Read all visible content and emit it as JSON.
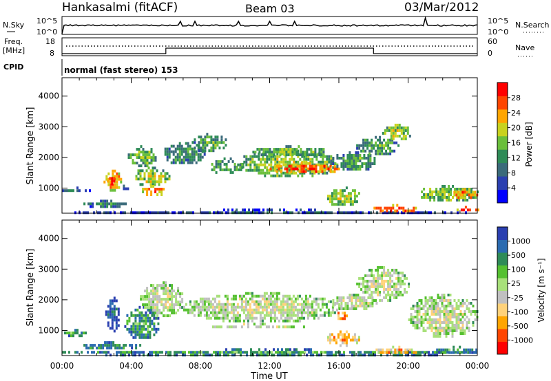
{
  "header": {
    "station": "Hankasalmi (fitACF)",
    "beam": "Beam 03",
    "date": "03/Mar/2012"
  },
  "status_panels": {
    "nsky_label": "N.Sky",
    "nsky_ticks": [
      "10^5",
      "10^0"
    ],
    "nsearch_label": "N.Search",
    "freq_label_line1": "Freq.",
    "freq_label_line2": "[MHz]",
    "freq_ticks": [
      "18",
      "8"
    ],
    "nave_label": "Nave",
    "nave_ticks": [
      "60",
      "0"
    ],
    "cpid_label": "CPID",
    "cpid_text": "normal (fast stereo) 153"
  },
  "chart_data": [
    {
      "type": "heatmap",
      "name": "power",
      "xlabel": "Time UT",
      "ylabel": "Slant Range [km]",
      "x_ticks": [
        "00:00",
        "04:00",
        "08:00",
        "12:00",
        "16:00",
        "20:00",
        "00:00"
      ],
      "xlim": [
        0,
        24
      ],
      "ylim": [
        180,
        4600
      ],
      "y_ticks": [
        1000,
        2000,
        3000,
        4000
      ],
      "colorbar_label": "Power [dB]",
      "colorbar_ticks": [
        4,
        8,
        12,
        16,
        20,
        24,
        28
      ],
      "colors": [
        "#0000ff",
        "#2a3fb0",
        "#3a6a7a",
        "#2e8b57",
        "#6abf3b",
        "#c8d21e",
        "#ffa500",
        "#ff4500",
        "#ff0000"
      ],
      "regions": [
        {
          "t0": 0.0,
          "t1": 23.9,
          "r0": 200,
          "r1": 330,
          "level": 0.25
        },
        {
          "t0": 0.0,
          "t1": 1.6,
          "r0": 880,
          "r1": 1050,
          "level": 0.3
        },
        {
          "t0": 1.0,
          "t1": 4.0,
          "r0": 420,
          "r1": 620,
          "level": 0.35
        },
        {
          "t0": 2.4,
          "t1": 3.4,
          "r0": 950,
          "r1": 1600,
          "level": 0.75
        },
        {
          "t0": 2.6,
          "t1": 3.0,
          "r0": 1150,
          "r1": 1450,
          "level": 0.95
        },
        {
          "t0": 3.4,
          "t1": 3.9,
          "r0": 950,
          "r1": 1200,
          "level": 0.35
        },
        {
          "t0": 3.8,
          "t1": 5.4,
          "r0": 1750,
          "r1": 2400,
          "level": 0.5
        },
        {
          "t0": 4.0,
          "t1": 6.2,
          "r0": 1100,
          "r1": 1700,
          "level": 0.6
        },
        {
          "t0": 4.5,
          "t1": 6.0,
          "r0": 800,
          "r1": 1100,
          "level": 0.8
        },
        {
          "t0": 5.8,
          "t1": 8.2,
          "r0": 1800,
          "r1": 2500,
          "level": 0.4
        },
        {
          "t0": 7.5,
          "t1": 9.5,
          "r0": 2200,
          "r1": 2800,
          "level": 0.45
        },
        {
          "t0": 8.5,
          "t1": 10.5,
          "r0": 1500,
          "r1": 2000,
          "level": 0.45
        },
        {
          "t0": 10.0,
          "t1": 16.0,
          "r0": 1400,
          "r1": 2250,
          "level": 0.55
        },
        {
          "t0": 12.0,
          "t1": 16.0,
          "r0": 1500,
          "r1": 1850,
          "level": 0.85
        },
        {
          "t0": 11.0,
          "t1": 15.5,
          "r0": 2050,
          "r1": 2400,
          "level": 0.5
        },
        {
          "t0": 15.5,
          "t1": 18.2,
          "r0": 1600,
          "r1": 2200,
          "level": 0.45
        },
        {
          "t0": 15.2,
          "t1": 17.2,
          "r0": 450,
          "r1": 1050,
          "level": 0.6
        },
        {
          "t0": 17.0,
          "t1": 19.5,
          "r0": 2100,
          "r1": 2700,
          "level": 0.45
        },
        {
          "t0": 18.5,
          "t1": 20.2,
          "r0": 2600,
          "r1": 3100,
          "level": 0.6
        },
        {
          "t0": 18.0,
          "t1": 20.5,
          "r0": 250,
          "r1": 480,
          "level": 0.9
        },
        {
          "t0": 20.5,
          "t1": 24.0,
          "r0": 600,
          "r1": 1100,
          "level": 0.55
        },
        {
          "t0": 22.5,
          "t1": 24.0,
          "r0": 700,
          "r1": 1000,
          "level": 0.8
        },
        {
          "t0": 22.8,
          "t1": 24.0,
          "r0": 260,
          "r1": 420,
          "level": 0.92
        }
      ]
    },
    {
      "type": "heatmap",
      "name": "velocity",
      "xlabel": "Time UT",
      "ylabel": "Slant Range [km]",
      "x_ticks": [
        "00:00",
        "04:00",
        "08:00",
        "12:00",
        "16:00",
        "20:00",
        "00:00"
      ],
      "xlim": [
        0,
        24
      ],
      "ylim": [
        180,
        4600
      ],
      "y_ticks": [
        1000,
        2000,
        3000,
        4000
      ],
      "colorbar_label": "Velocity [m s⁻¹]",
      "colorbar_ticks": [
        1000,
        500,
        100,
        25,
        -25,
        -100,
        -500,
        -1000
      ],
      "colors": [
        "#2a3fb0",
        "#2a6ab0",
        "#2e8b57",
        "#55c030",
        "#a8e07a",
        "#c0c0c0",
        "#ffd27a",
        "#ffa500",
        "#ff4500",
        "#ff0000"
      ],
      "regions": [
        {
          "t0": 0.0,
          "t1": 24.0,
          "r0": 200,
          "r1": 420,
          "level": 0.3
        },
        {
          "t0": 0.0,
          "t1": 1.5,
          "r0": 850,
          "r1": 1050,
          "level": 0.35
        },
        {
          "t0": 1.0,
          "t1": 4.5,
          "r0": 420,
          "r1": 650,
          "level": 0.3
        },
        {
          "t0": 2.5,
          "t1": 3.3,
          "r0": 1000,
          "r1": 2100,
          "level": 0.15
        },
        {
          "t0": 3.6,
          "t1": 5.6,
          "r0": 750,
          "r1": 1800,
          "level": 0.3
        },
        {
          "t0": 4.5,
          "t1": 7.0,
          "r0": 1500,
          "r1": 2600,
          "level": 0.55
        },
        {
          "t0": 7.0,
          "t1": 16.0,
          "r0": 1300,
          "r1": 2250,
          "level": 0.55
        },
        {
          "t0": 7.0,
          "t1": 15.5,
          "r0": 1150,
          "r1": 1250,
          "level": 0.65
        },
        {
          "t0": 15.5,
          "t1": 18.2,
          "r0": 1700,
          "r1": 2200,
          "level": 0.55
        },
        {
          "t0": 15.2,
          "t1": 17.2,
          "r0": 550,
          "r1": 1000,
          "level": 0.75
        },
        {
          "t0": 15.8,
          "t1": 16.5,
          "r0": 1350,
          "r1": 1700,
          "level": 0.8
        },
        {
          "t0": 17.0,
          "t1": 20.0,
          "r0": 2000,
          "r1": 3100,
          "level": 0.55
        },
        {
          "t0": 18.0,
          "t1": 20.5,
          "r0": 250,
          "r1": 500,
          "level": 0.72
        },
        {
          "t0": 20.0,
          "t1": 24.0,
          "r0": 800,
          "r1": 2200,
          "level": 0.55
        },
        {
          "t0": 21.5,
          "t1": 24.0,
          "r0": 250,
          "r1": 500,
          "level": 0.3
        }
      ]
    }
  ]
}
